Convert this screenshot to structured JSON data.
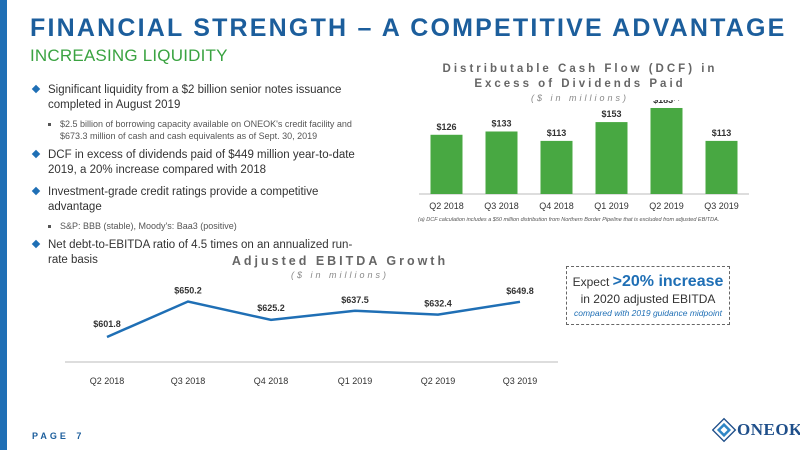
{
  "header": {
    "title": "FINANCIAL STRENGTH – A COMPETITIVE ADVANTAGE",
    "subtitle": "INCREASING LIQUIDITY"
  },
  "bullets": [
    {
      "text": "Significant liquidity from a $2 billion senior notes issuance completed in August 2019",
      "sub": [
        "$2.5 billion of borrowing capacity available on ONEOK's credit facility and $673.3 million of cash and cash equivalents as of Sept. 30, 2019"
      ]
    },
    {
      "text": "DCF in excess of dividends paid of $449 million year-to-date 2019, a 20% increase compared with 2018",
      "sub": []
    },
    {
      "text": "Investment-grade credit ratings provide a competitive advantage",
      "sub": [
        "S&P: BBB (stable), Moody's: Baa3 (positive)"
      ]
    },
    {
      "text": "Net debt-to-EBITDA ratio of 4.5 times on an annualized run-rate basis",
      "sub": []
    }
  ],
  "dcf_chart": {
    "title_line1": "Distributable Cash Flow (DCF) in",
    "title_line2": "Excess of Dividends Paid",
    "unit": "($ in millions)",
    "footnote": "(a) DCF calculation includes a $50 million distribution from Northern Border Pipeline that is excluded from adjusted EBITDA.",
    "superscript": "(a)"
  },
  "ebitda_chart": {
    "title": "Adjusted EBITDA Growth",
    "unit": "($ in millions)"
  },
  "callout": {
    "expect": "Expect",
    "highlight": ">20% increase",
    "line2": "in 2020 adjusted EBITDA",
    "line3": "compared with 2019 guidance midpoint"
  },
  "footer": {
    "page_label": "PAGE",
    "page_number": "7",
    "logo_text": "ONEOK"
  },
  "colors": {
    "accent_blue": "#1f6fb5",
    "green": "#3aa341",
    "bar_green": "#48a842"
  },
  "chart_data": [
    {
      "type": "bar",
      "categories": [
        "Q2 2018",
        "Q3 2018",
        "Q4 2018",
        "Q1 2019",
        "Q2 2019",
        "Q3 2019"
      ],
      "values": [
        126,
        133,
        113,
        153,
        183,
        113
      ],
      "labels": [
        "$126",
        "$133",
        "$113",
        "$153",
        "$183",
        "$113"
      ],
      "title": "Distributable Cash Flow (DCF) in Excess of Dividends Paid",
      "ylim": [
        0,
        200
      ]
    },
    {
      "type": "line",
      "categories": [
        "Q2 2018",
        "Q3 2018",
        "Q4 2018",
        "Q1 2019",
        "Q2 2019",
        "Q3 2019"
      ],
      "values": [
        601.8,
        650.2,
        625.2,
        637.5,
        632.4,
        649.8
      ],
      "labels": [
        "$601.8",
        "$650.2",
        "$625.2",
        "$637.5",
        "$632.4",
        "$649.8"
      ],
      "title": "Adjusted EBITDA Growth",
      "ylim": [
        595,
        655
      ]
    }
  ]
}
